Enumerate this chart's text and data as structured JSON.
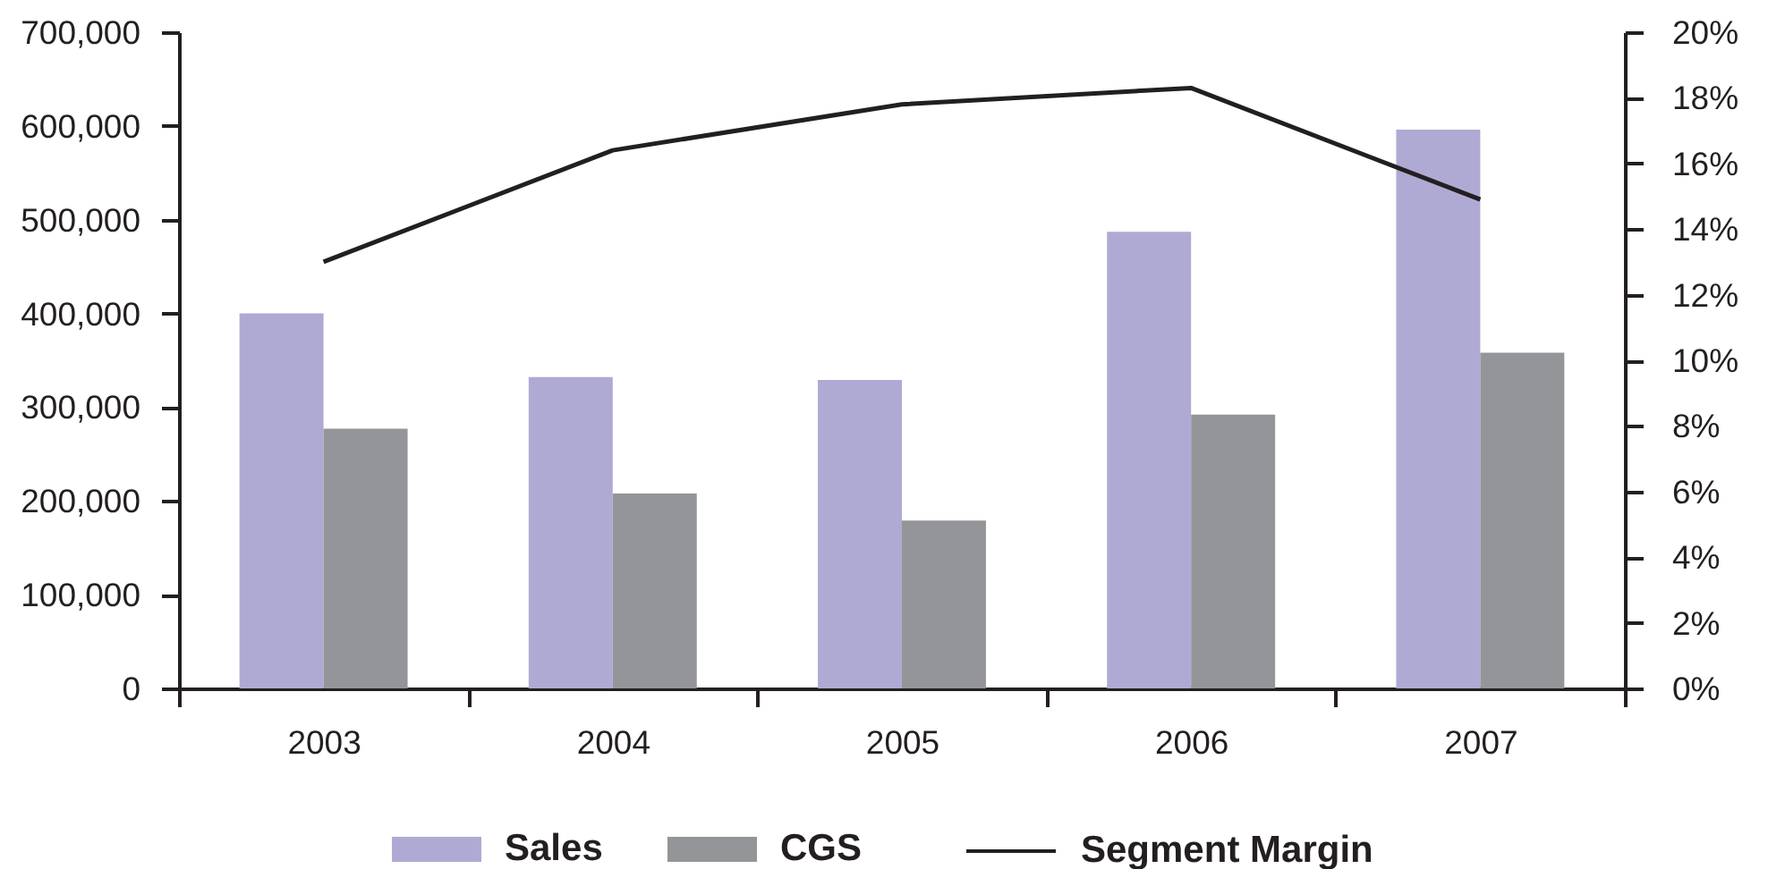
{
  "chart_data": {
    "type": "bar",
    "categories": [
      "2003",
      "2004",
      "2005",
      "2006",
      "2007"
    ],
    "series": [
      {
        "name": "Sales",
        "color": "#afaad4",
        "values": [
          400000,
          332000,
          329000,
          487000,
          596000
        ]
      },
      {
        "name": "CGS",
        "color": "#939598",
        "values": [
          277000,
          208000,
          179000,
          292000,
          358000
        ]
      },
      {
        "name": "Segment Margin",
        "type": "line",
        "axis": "y2",
        "color": "#231f20",
        "values": [
          13.0,
          16.4,
          17.8,
          18.3,
          14.9
        ]
      }
    ],
    "ylim": [
      0,
      700000
    ],
    "yticks": [
      0,
      {
        "value": 100000,
        "label": "100,000"
      },
      {
        "value": 200000,
        "label": "200,000"
      },
      {
        "value": 300000,
        "label": "300,000"
      },
      {
        "value": 400000,
        "label": "400,000"
      },
      {
        "value": 500000,
        "label": "500,000"
      },
      {
        "value": 600000,
        "label": "600,000"
      },
      {
        "value": 700000,
        "label": "700,000"
      }
    ],
    "y2lim": [
      0,
      20
    ],
    "y2ticks": [
      {
        "value": 0,
        "label": "0%"
      },
      {
        "value": 2,
        "label": "2%"
      },
      {
        "value": 4,
        "label": "4%"
      },
      {
        "value": 6,
        "label": "6%"
      },
      {
        "value": 8,
        "label": "8%"
      },
      {
        "value": 10,
        "label": "10%"
      },
      {
        "value": 12,
        "label": "12%"
      },
      {
        "value": 14,
        "label": "14%"
      },
      {
        "value": 16,
        "label": "16%"
      },
      {
        "value": 18,
        "label": "18%"
      },
      {
        "value": 20,
        "label": "20%"
      }
    ],
    "grid": false,
    "legend": "bottom"
  }
}
